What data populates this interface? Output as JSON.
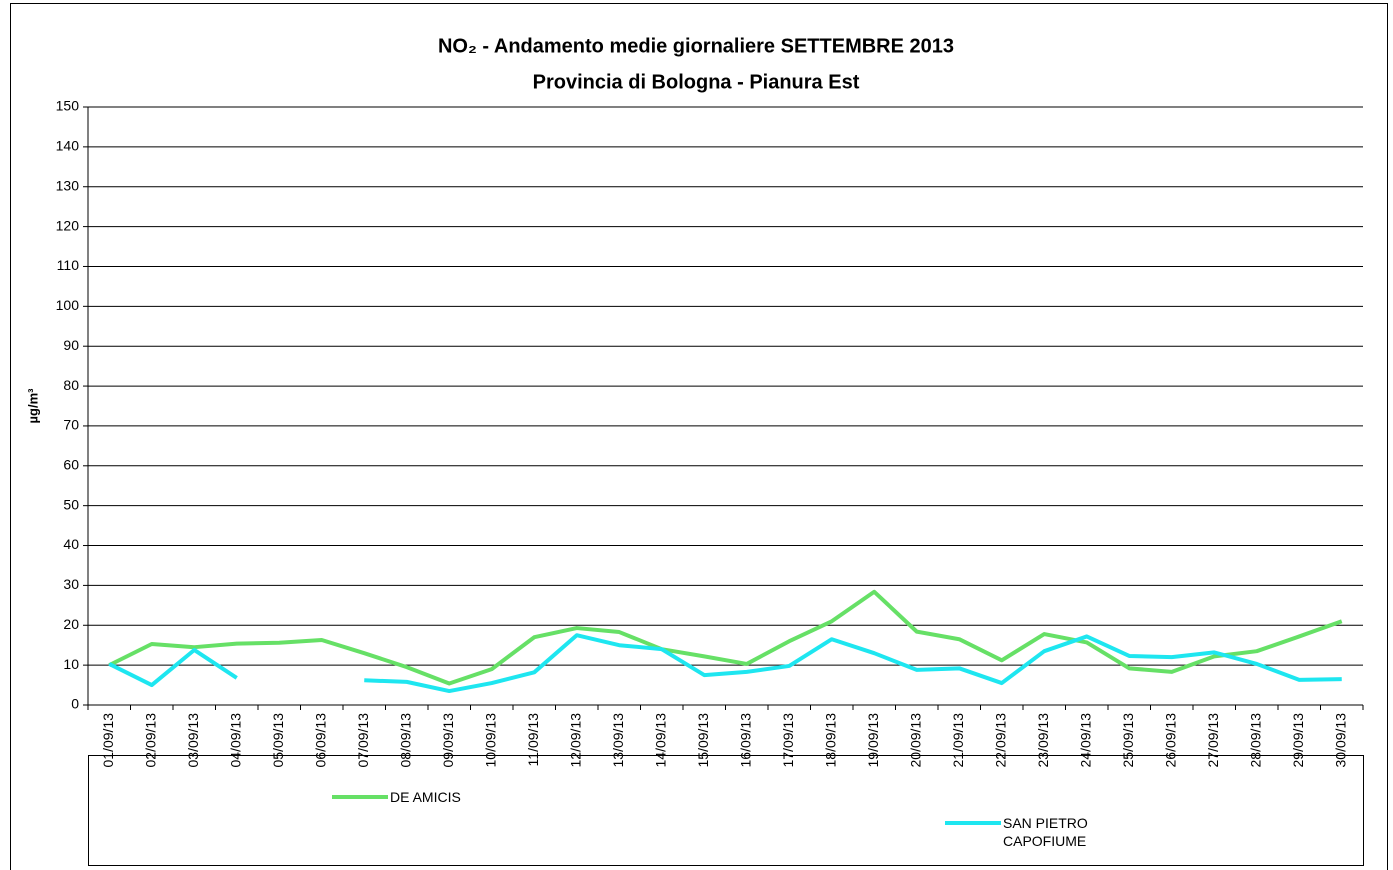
{
  "chart_data": {
    "type": "line",
    "title": "NO₂ - Andamento medie giornaliere SETTEMBRE 2013",
    "subtitle": "Provincia di Bologna - Pianura Est",
    "y_label": "µg/m³",
    "categories": [
      "01/09/13",
      "02/09/13",
      "03/09/13",
      "04/09/13",
      "05/09/13",
      "06/09/13",
      "07/09/13",
      "08/09/13",
      "09/09/13",
      "10/09/13",
      "11/09/13",
      "12/09/13",
      "13/09/13",
      "14/09/13",
      "15/09/13",
      "16/09/13",
      "17/09/13",
      "18/09/13",
      "19/09/13",
      "20/09/13",
      "21/09/13",
      "22/09/13",
      "23/09/13",
      "24/09/13",
      "25/09/13",
      "26/09/13",
      "27/09/13",
      "28/09/13",
      "29/09/13",
      "30/09/13"
    ],
    "series": [
      {
        "name": "DE AMICIS",
        "color": "#66e066",
        "values": [
          10,
          15.3,
          14.5,
          15.4,
          15.6,
          16.3,
          13,
          9.5,
          5.4,
          9,
          17,
          19.3,
          18.3,
          14,
          12.2,
          10.3,
          16,
          21,
          28.4,
          18.4,
          16.5,
          11.2,
          17.8,
          15.7,
          9.2,
          8.3,
          12.2,
          13.5,
          17.2,
          21
        ]
      },
      {
        "name": "SAN PIETRO CAPOFIUME",
        "color": "#1ee6f0",
        "values": [
          10.3,
          5,
          13.8,
          6.8,
          null,
          null,
          6.2,
          5.8,
          3.5,
          5.5,
          8.2,
          17.5,
          15,
          14,
          7.5,
          8.3,
          9.8,
          16.5,
          13,
          8.8,
          9.2,
          5.5,
          13.5,
          17.2,
          12.3,
          12,
          13.2,
          10.3,
          6.3,
          6.5
        ]
      }
    ],
    "ylim": [
      0,
      150
    ],
    "yticks": [
      0,
      10,
      20,
      30,
      40,
      50,
      60,
      70,
      80,
      90,
      100,
      110,
      120,
      130,
      140,
      150
    ],
    "grid": true
  }
}
